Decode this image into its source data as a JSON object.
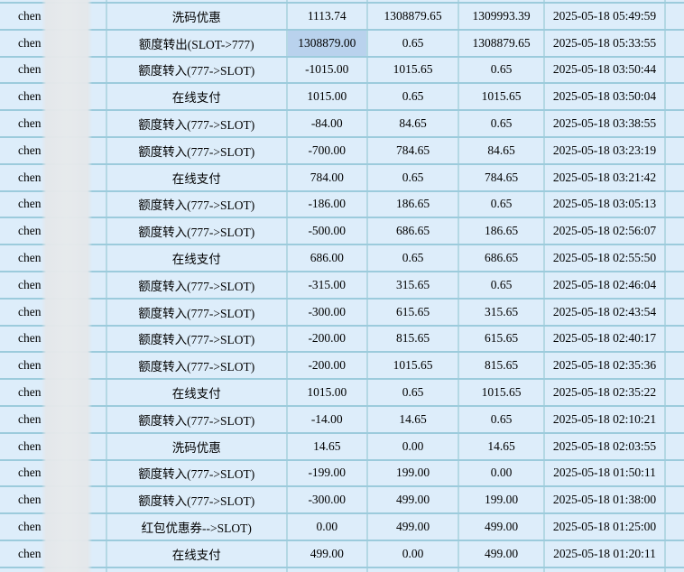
{
  "app": {
    "view": "transaction-history-table",
    "language": "zh-CN"
  },
  "colors": {
    "row_background": "#ddedfa",
    "horizontal_border": "#9ccbdc",
    "vertical_border": "#b4d8e4",
    "selected_cell_background": "#b9d2ed",
    "text": "#000000",
    "redaction_strip": "#e4e7ea"
  },
  "table": {
    "username_visible": "chen",
    "username_redacted": true,
    "columns": [
      "username",
      "transaction_type",
      "amount",
      "balance_before",
      "balance_after",
      "time"
    ],
    "rows": [
      {
        "type": "洗码优惠",
        "amount": "1113.74",
        "balance_before": "1308879.65",
        "balance_after": "1309993.39",
        "time": "2025-05-18 05:49:59",
        "amount_selected": false
      },
      {
        "type": "额度转出(SLOT->777)",
        "amount": "1308879.00",
        "balance_before": "0.65",
        "balance_after": "1308879.65",
        "time": "2025-05-18 05:33:55",
        "amount_selected": true
      },
      {
        "type": "额度转入(777->SLOT)",
        "amount": "-1015.00",
        "balance_before": "1015.65",
        "balance_after": "0.65",
        "time": "2025-05-18 03:50:44",
        "amount_selected": false
      },
      {
        "type": "在线支付",
        "amount": "1015.00",
        "balance_before": "0.65",
        "balance_after": "1015.65",
        "time": "2025-05-18 03:50:04",
        "amount_selected": false
      },
      {
        "type": "额度转入(777->SLOT)",
        "amount": "-84.00",
        "balance_before": "84.65",
        "balance_after": "0.65",
        "time": "2025-05-18 03:38:55",
        "amount_selected": false
      },
      {
        "type": "额度转入(777->SLOT)",
        "amount": "-700.00",
        "balance_before": "784.65",
        "balance_after": "84.65",
        "time": "2025-05-18 03:23:19",
        "amount_selected": false
      },
      {
        "type": "在线支付",
        "amount": "784.00",
        "balance_before": "0.65",
        "balance_after": "784.65",
        "time": "2025-05-18 03:21:42",
        "amount_selected": false
      },
      {
        "type": "额度转入(777->SLOT)",
        "amount": "-186.00",
        "balance_before": "186.65",
        "balance_after": "0.65",
        "time": "2025-05-18 03:05:13",
        "amount_selected": false
      },
      {
        "type": "额度转入(777->SLOT)",
        "amount": "-500.00",
        "balance_before": "686.65",
        "balance_after": "186.65",
        "time": "2025-05-18 02:56:07",
        "amount_selected": false
      },
      {
        "type": "在线支付",
        "amount": "686.00",
        "balance_before": "0.65",
        "balance_after": "686.65",
        "time": "2025-05-18 02:55:50",
        "amount_selected": false
      },
      {
        "type": "额度转入(777->SLOT)",
        "amount": "-315.00",
        "balance_before": "315.65",
        "balance_after": "0.65",
        "time": "2025-05-18 02:46:04",
        "amount_selected": false
      },
      {
        "type": "额度转入(777->SLOT)",
        "amount": "-300.00",
        "balance_before": "615.65",
        "balance_after": "315.65",
        "time": "2025-05-18 02:43:54",
        "amount_selected": false
      },
      {
        "type": "额度转入(777->SLOT)",
        "amount": "-200.00",
        "balance_before": "815.65",
        "balance_after": "615.65",
        "time": "2025-05-18 02:40:17",
        "amount_selected": false
      },
      {
        "type": "额度转入(777->SLOT)",
        "amount": "-200.00",
        "balance_before": "1015.65",
        "balance_after": "815.65",
        "time": "2025-05-18 02:35:36",
        "amount_selected": false
      },
      {
        "type": "在线支付",
        "amount": "1015.00",
        "balance_before": "0.65",
        "balance_after": "1015.65",
        "time": "2025-05-18 02:35:22",
        "amount_selected": false
      },
      {
        "type": "额度转入(777->SLOT)",
        "amount": "-14.00",
        "balance_before": "14.65",
        "balance_after": "0.65",
        "time": "2025-05-18 02:10:21",
        "amount_selected": false
      },
      {
        "type": "洗码优惠",
        "amount": "14.65",
        "balance_before": "0.00",
        "balance_after": "14.65",
        "time": "2025-05-18 02:03:55",
        "amount_selected": false
      },
      {
        "type": "额度转入(777->SLOT)",
        "amount": "-199.00",
        "balance_before": "199.00",
        "balance_after": "0.00",
        "time": "2025-05-18 01:50:11",
        "amount_selected": false
      },
      {
        "type": "额度转入(777->SLOT)",
        "amount": "-300.00",
        "balance_before": "499.00",
        "balance_after": "199.00",
        "time": "2025-05-18 01:38:00",
        "amount_selected": false
      },
      {
        "type": "红包优惠券-->SLOT)",
        "amount": "0.00",
        "balance_before": "499.00",
        "balance_after": "499.00",
        "time": "2025-05-18 01:25:00",
        "amount_selected": false
      },
      {
        "type": "在线支付",
        "amount": "499.00",
        "balance_before": "0.00",
        "balance_after": "499.00",
        "time": "2025-05-18 01:20:11",
        "amount_selected": false
      }
    ]
  }
}
